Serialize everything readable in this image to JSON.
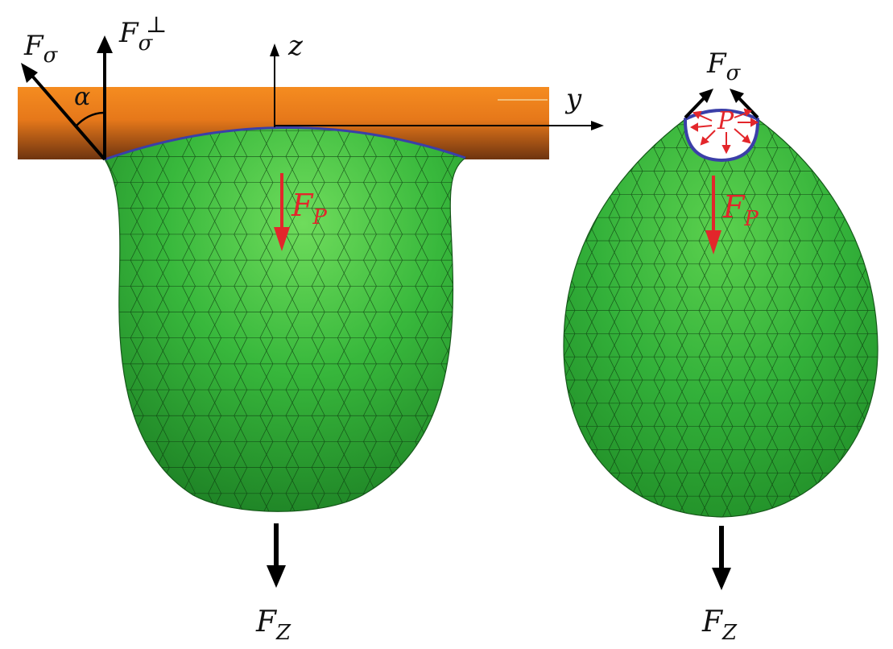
{
  "labels": {
    "f_sigma": "F",
    "f_sigma_sub": "σ",
    "f_sigma_perp": "F",
    "f_sigma_perp_sub": "σ",
    "f_sigma_perp_sup": "⊥",
    "alpha": "α",
    "z_axis": "z",
    "y_axis": "y",
    "f_p_left": "F",
    "f_p_left_sub": "P",
    "f_z_left": "F",
    "f_z_left_sub": "Z",
    "f_sigma_right": "F",
    "f_sigma_right_sub": "σ",
    "pressure": "P",
    "f_p_right": "F",
    "f_p_right_sub": "P",
    "f_z_right": "F",
    "f_z_right_sub": "Z"
  },
  "colors": {
    "pipe_top": "#f7931e",
    "pipe_mid": "#e87a1a",
    "pipe_bottom": "#7a3a10",
    "droplet_light": "#5fd65a",
    "droplet_mid": "#2fb33a",
    "droplet_dark": "#1d7a22",
    "mesh": "#0e3b10",
    "contact_line": "#3b3fa8",
    "force_red": "#e3262b",
    "force_black": "#000000"
  }
}
